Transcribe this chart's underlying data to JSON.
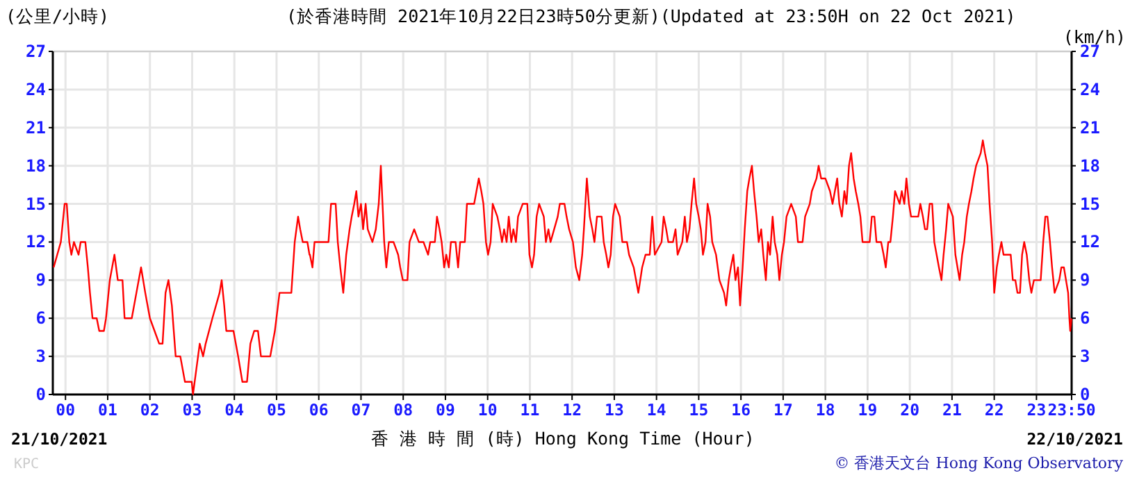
{
  "chart_data": {
    "type": "line",
    "title": "(於香港時間 2021年10月22日23時50分更新)(Updated at 23:50H on 22 Oct 2021)",
    "ylabel": "(公里/小時)",
    "y2label": "(km/h)",
    "xlabel": "香 港 時 間 (時) Hong Kong Time (Hour)",
    "annotations": [
      "21/10/2021",
      "22/10/2021",
      "KPC",
      "© 香港天文台 Hong Kong Observatory"
    ],
    "xlim": [
      -0.3,
      23.833
    ],
    "xticks": [
      {
        "value": 0,
        "label": "00"
      },
      {
        "value": 1,
        "label": "01"
      },
      {
        "value": 2,
        "label": "02"
      },
      {
        "value": 3,
        "label": "03"
      },
      {
        "value": 4,
        "label": "04"
      },
      {
        "value": 5,
        "label": "05"
      },
      {
        "value": 6,
        "label": "06"
      },
      {
        "value": 7,
        "label": "07"
      },
      {
        "value": 8,
        "label": "08"
      },
      {
        "value": 9,
        "label": "09"
      },
      {
        "value": 10,
        "label": "10"
      },
      {
        "value": 11,
        "label": "11"
      },
      {
        "value": 12,
        "label": "12"
      },
      {
        "value": 13,
        "label": "13"
      },
      {
        "value": 14,
        "label": "14"
      },
      {
        "value": 15,
        "label": "15"
      },
      {
        "value": 16,
        "label": "16"
      },
      {
        "value": 17,
        "label": "17"
      },
      {
        "value": 18,
        "label": "18"
      },
      {
        "value": 19,
        "label": "19"
      },
      {
        "value": 20,
        "label": "20"
      },
      {
        "value": 21,
        "label": "21"
      },
      {
        "value": 22,
        "label": "22"
      },
      {
        "value": 23,
        "label": "23"
      },
      {
        "value": 23.833,
        "label": "23:50"
      }
    ],
    "ylim": [
      0,
      27
    ],
    "yticks": [
      0,
      3,
      6,
      9,
      12,
      15,
      18,
      21,
      24,
      27
    ],
    "y2lim": [
      0,
      27
    ],
    "y2ticks": [
      0,
      3,
      6,
      9,
      12,
      15,
      18,
      21,
      24,
      27
    ],
    "grid": true,
    "series": [
      {
        "color": "#ff0000",
        "x": [
          -0.28,
          -0.11,
          -0.02,
          0.03,
          0.09,
          0.14,
          0.2,
          0.31,
          0.36,
          0.47,
          0.53,
          0.58,
          0.64,
          0.74,
          0.8,
          0.91,
          0.96,
          1.05,
          1.16,
          1.24,
          1.35,
          1.4,
          1.57,
          1.68,
          1.79,
          1.89,
          2.0,
          2.11,
          2.22,
          2.3,
          2.37,
          2.44,
          2.52,
          2.61,
          2.72,
          2.83,
          2.99,
          3.02,
          3.1,
          3.18,
          3.26,
          3.32,
          3.48,
          3.65,
          3.7,
          3.76,
          3.81,
          3.98,
          4.09,
          4.19,
          4.3,
          4.38,
          4.47,
          4.56,
          4.63,
          4.85,
          4.96,
          5.07,
          5.24,
          5.35,
          5.43,
          5.51,
          5.56,
          5.62,
          5.73,
          5.78,
          5.79,
          5.85,
          5.9,
          6.23,
          6.29,
          6.4,
          6.45,
          6.51,
          6.58,
          6.65,
          6.73,
          6.78,
          6.84,
          6.89,
          6.94,
          7.0,
          7.05,
          7.11,
          7.16,
          7.27,
          7.35,
          7.42,
          7.47,
          7.55,
          7.6,
          7.66,
          7.77,
          7.88,
          7.93,
          7.99,
          8.1,
          8.15,
          8.26,
          8.37,
          8.48,
          8.59,
          8.64,
          8.75,
          8.8,
          8.86,
          8.91,
          8.97,
          9.02,
          9.08,
          9.13,
          9.24,
          9.3,
          9.35,
          9.46,
          9.51,
          9.68,
          9.79,
          9.85,
          9.9,
          9.96,
          10.01,
          10.07,
          10.12,
          10.23,
          10.29,
          10.34,
          10.39,
          10.45,
          10.5,
          10.56,
          10.61,
          10.67,
          10.72,
          10.83,
          10.94,
          10.99,
          11.05,
          11.1,
          11.16,
          11.22,
          11.33,
          11.38,
          11.44,
          11.49,
          11.66,
          11.71,
          11.82,
          11.87,
          11.93,
          12.02,
          12.09,
          12.17,
          12.24,
          12.28,
          12.35,
          12.42,
          12.48,
          12.53,
          12.59,
          12.7,
          12.75,
          12.81,
          12.86,
          12.915,
          12.97,
          13.02,
          13.13,
          13.19,
          13.3,
          13.35,
          13.46,
          13.57,
          13.66,
          13.74,
          13.84,
          13.9,
          13.96,
          14.12,
          14.17,
          14.23,
          14.28,
          14.39,
          14.45,
          14.5,
          14.61,
          14.67,
          14.72,
          14.78,
          14.83,
          14.89,
          14.94,
          15.0,
          15.05,
          15.1,
          15.16,
          15.21,
          15.27,
          15.32,
          15.41,
          15.49,
          15.6,
          15.65,
          15.71,
          15.76,
          15.82,
          15.87,
          15.93,
          15.98,
          16.04,
          16.09,
          16.15,
          16.2,
          16.26,
          16.31,
          16.37,
          16.42,
          16.48,
          16.53,
          16.59,
          16.64,
          16.69,
          16.75,
          16.8,
          16.86,
          16.91,
          16.97,
          17.02,
          17.08,
          17.19,
          17.3,
          17.35,
          17.46,
          17.52,
          17.63,
          17.68,
          17.79,
          17.84,
          17.9,
          18.0,
          18.11,
          18.17,
          18.28,
          18.33,
          18.39,
          18.45,
          18.5,
          18.56,
          18.61,
          18.67,
          18.72,
          18.78,
          18.83,
          18.88,
          19.05,
          19.1,
          19.16,
          19.21,
          19.32,
          19.38,
          19.43,
          19.49,
          19.54,
          19.6,
          19.65,
          19.76,
          19.81,
          19.87,
          19.92,
          19.98,
          20.03,
          20.2,
          20.25,
          20.31,
          20.36,
          20.41,
          20.47,
          20.53,
          20.58,
          20.69,
          20.75,
          20.8,
          20.86,
          20.91,
          21.02,
          21.08,
          21.13,
          21.18,
          21.24,
          21.29,
          21.35,
          21.4,
          21.46,
          21.51,
          21.57,
          21.68,
          21.73,
          21.78,
          21.84,
          21.89,
          21.95,
          22.0,
          22.06,
          22.11,
          22.17,
          22.22,
          22.39,
          22.44,
          22.5,
          22.55,
          22.61,
          22.66,
          22.71,
          22.77,
          22.83,
          22.88,
          22.94,
          23.1,
          23.16,
          23.21,
          23.26,
          23.32,
          23.37,
          23.43,
          23.54,
          23.59,
          23.65,
          23.7,
          23.75,
          23.78,
          23.8,
          23.83
        ],
        "values": [
          10,
          12,
          15,
          15,
          12,
          11,
          12,
          11,
          12,
          12,
          10,
          8,
          6,
          6,
          5,
          5,
          6,
          9,
          11,
          9,
          9,
          6,
          6,
          8,
          10,
          8,
          6,
          5,
          4,
          4,
          8,
          9,
          7,
          3,
          3,
          1,
          1,
          0,
          2,
          4,
          3,
          4,
          6,
          8,
          9,
          7,
          5,
          5,
          3,
          1,
          1,
          4,
          5,
          5,
          3,
          3,
          5,
          8,
          8,
          8,
          12,
          14,
          13,
          12,
          12,
          11,
          11,
          10,
          12,
          12,
          15,
          15,
          12,
          10,
          8,
          11,
          13,
          14,
          15,
          16,
          14,
          15,
          13,
          15,
          13,
          12,
          13,
          15,
          18,
          12,
          10,
          12,
          12,
          11,
          10,
          9,
          9,
          12,
          13,
          12,
          12,
          11,
          12,
          12,
          14,
          13,
          12,
          10,
          11,
          10,
          12,
          12,
          10,
          12,
          12,
          15,
          15,
          17,
          16,
          15,
          12,
          11,
          12,
          15,
          14,
          13,
          12,
          13,
          12,
          14,
          12,
          13,
          12,
          14,
          15,
          15,
          11,
          10,
          11,
          14,
          15,
          14,
          12,
          13,
          12,
          14,
          15,
          15,
          14,
          13,
          12,
          10,
          9,
          11,
          13,
          17,
          14,
          13,
          12,
          14,
          14,
          12,
          11,
          10,
          11,
          14,
          15,
          14,
          12,
          12,
          11,
          10,
          8,
          10,
          11,
          11,
          14,
          11,
          12,
          14,
          13,
          12,
          12,
          13,
          11,
          12,
          14,
          12,
          13,
          15,
          17,
          15,
          14,
          13,
          11,
          12,
          15,
          14,
          12,
          11,
          9,
          8,
          7,
          9,
          10,
          11,
          9,
          10,
          7,
          10,
          13,
          16,
          17,
          18,
          16,
          14,
          12,
          13,
          11,
          9,
          12,
          11,
          14,
          12,
          11,
          9,
          11,
          12,
          14,
          15,
          14,
          12,
          12,
          14,
          15,
          16,
          17,
          18,
          17,
          17,
          16,
          15,
          17,
          15,
          14,
          16,
          15,
          18,
          19,
          17,
          16,
          15,
          14,
          12,
          12,
          14,
          14,
          12,
          12,
          11,
          10,
          12,
          12,
          14,
          16,
          15,
          16,
          15,
          17,
          15,
          14,
          14,
          15,
          14,
          13,
          13,
          15,
          15,
          12,
          10,
          9,
          11,
          13,
          15,
          14,
          11,
          10,
          9,
          11,
          12,
          14,
          15,
          16,
          17,
          18,
          19,
          20,
          19,
          18,
          15,
          12,
          8,
          10,
          11,
          12,
          11,
          11,
          9,
          9,
          8,
          8,
          11,
          12,
          11,
          9,
          8,
          9,
          9,
          12,
          14,
          14,
          12,
          10,
          8,
          9,
          10,
          10,
          9,
          8,
          6,
          5,
          6
        ]
      }
    ]
  }
}
